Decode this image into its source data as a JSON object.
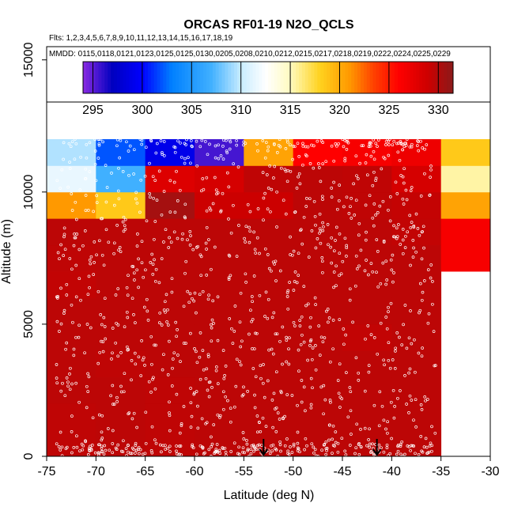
{
  "chart_data": {
    "type": "heatmap",
    "title": "ORCAS RF01-19 N2O_QCLS",
    "flights_line": "Flts: 1,2,3,4,5,6,7,8,9,10,11,12,13,14,15,16,17,18,19",
    "dates_line": "MMDD: 0115,0118,0121,0123,0125,0125,0130,0205,0208,0210,0212,0215,0217,0218,0219,0222,0224,0225,0229",
    "xlabel": "Latitude (deg N)",
    "ylabel": "Altitude (m)",
    "xlim": [
      -75,
      -30
    ],
    "ylim": [
      0,
      15500
    ],
    "x_ticks": [
      "-75",
      "-70",
      "-65",
      "-60",
      "-55",
      "-50",
      "-45",
      "-40",
      "-35",
      "-30"
    ],
    "x_tick_values": [
      -75,
      -70,
      -65,
      -60,
      -55,
      -50,
      -45,
      -40,
      -35,
      -30
    ],
    "y_ticks": [
      "0",
      "5000",
      "10000",
      "15000"
    ],
    "y_tick_values": [
      0,
      5000,
      10000,
      15000
    ],
    "colorbar": {
      "ticks": [
        "295",
        "300",
        "305",
        "310",
        "315",
        "320",
        "325",
        "330"
      ],
      "tick_values": [
        295,
        300,
        305,
        310,
        315,
        320,
        325,
        330
      ],
      "range": [
        294,
        331.5
      ],
      "stops": [
        {
          "v": 294,
          "c": "#8a2be2"
        },
        {
          "v": 297,
          "c": "#0000c0"
        },
        {
          "v": 300,
          "c": "#0000ff"
        },
        {
          "v": 303,
          "c": "#0080ff"
        },
        {
          "v": 307,
          "c": "#40b0ff"
        },
        {
          "v": 310,
          "c": "#c8ecff"
        },
        {
          "v": 312.5,
          "c": "#ffffff"
        },
        {
          "v": 315,
          "c": "#fffbc0"
        },
        {
          "v": 318,
          "c": "#ffd21e"
        },
        {
          "v": 321,
          "c": "#ff9900"
        },
        {
          "v": 323.5,
          "c": "#ff4000"
        },
        {
          "v": 326,
          "c": "#ff0000"
        },
        {
          "v": 329,
          "c": "#cc0000"
        },
        {
          "v": 331.5,
          "c": "#8b1a1a"
        }
      ]
    },
    "bin": {
      "dlat": 5,
      "dalt": 1000,
      "lat_start": -75,
      "alt_start": 0
    },
    "grid_rows": [
      [
        329.5,
        329.6,
        329.5,
        329.6,
        329.6,
        329.6,
        329.6,
        329.6,
        null
      ],
      [
        329.5,
        329.6,
        329.5,
        329.6,
        329.6,
        329.6,
        329.6,
        329.6,
        null
      ],
      [
        329.6,
        329.6,
        329.5,
        329.6,
        329.6,
        329.6,
        329.6,
        329.6,
        null
      ],
      [
        329.6,
        329.5,
        329.6,
        329.6,
        329.6,
        329.6,
        329.6,
        329.6,
        null
      ],
      [
        329.6,
        329.6,
        329.6,
        329.6,
        329.6,
        329.6,
        329.4,
        329.6,
        null
      ],
      [
        329.6,
        329.6,
        329.6,
        329.6,
        329.6,
        329.6,
        329.6,
        329.6,
        null
      ],
      [
        329.4,
        329.6,
        329.6,
        329.6,
        329.6,
        329.6,
        329.6,
        329.6,
        null
      ],
      [
        329.5,
        329.6,
        329.6,
        329.6,
        329.6,
        329.6,
        329.6,
        329.6,
        326.5
      ],
      [
        329.6,
        329.6,
        329.6,
        329.6,
        329.6,
        329.6,
        329.6,
        329.4,
        326.5
      ],
      [
        321.0,
        318.5,
        330.5,
        329.0,
        329.0,
        329.6,
        329.5,
        329.3,
        320.5
      ],
      [
        311.5,
        307.0,
        328.0,
        328.5,
        329.5,
        329.6,
        329.5,
        328.5,
        315.5
      ],
      [
        309.5,
        302.0,
        299.0,
        295.5,
        320.5,
        326.0,
        326.5,
        327.0,
        318.5
      ]
    ],
    "arrows_lat": [
      -53,
      -41.5
    ],
    "marker_count": 1400
  }
}
